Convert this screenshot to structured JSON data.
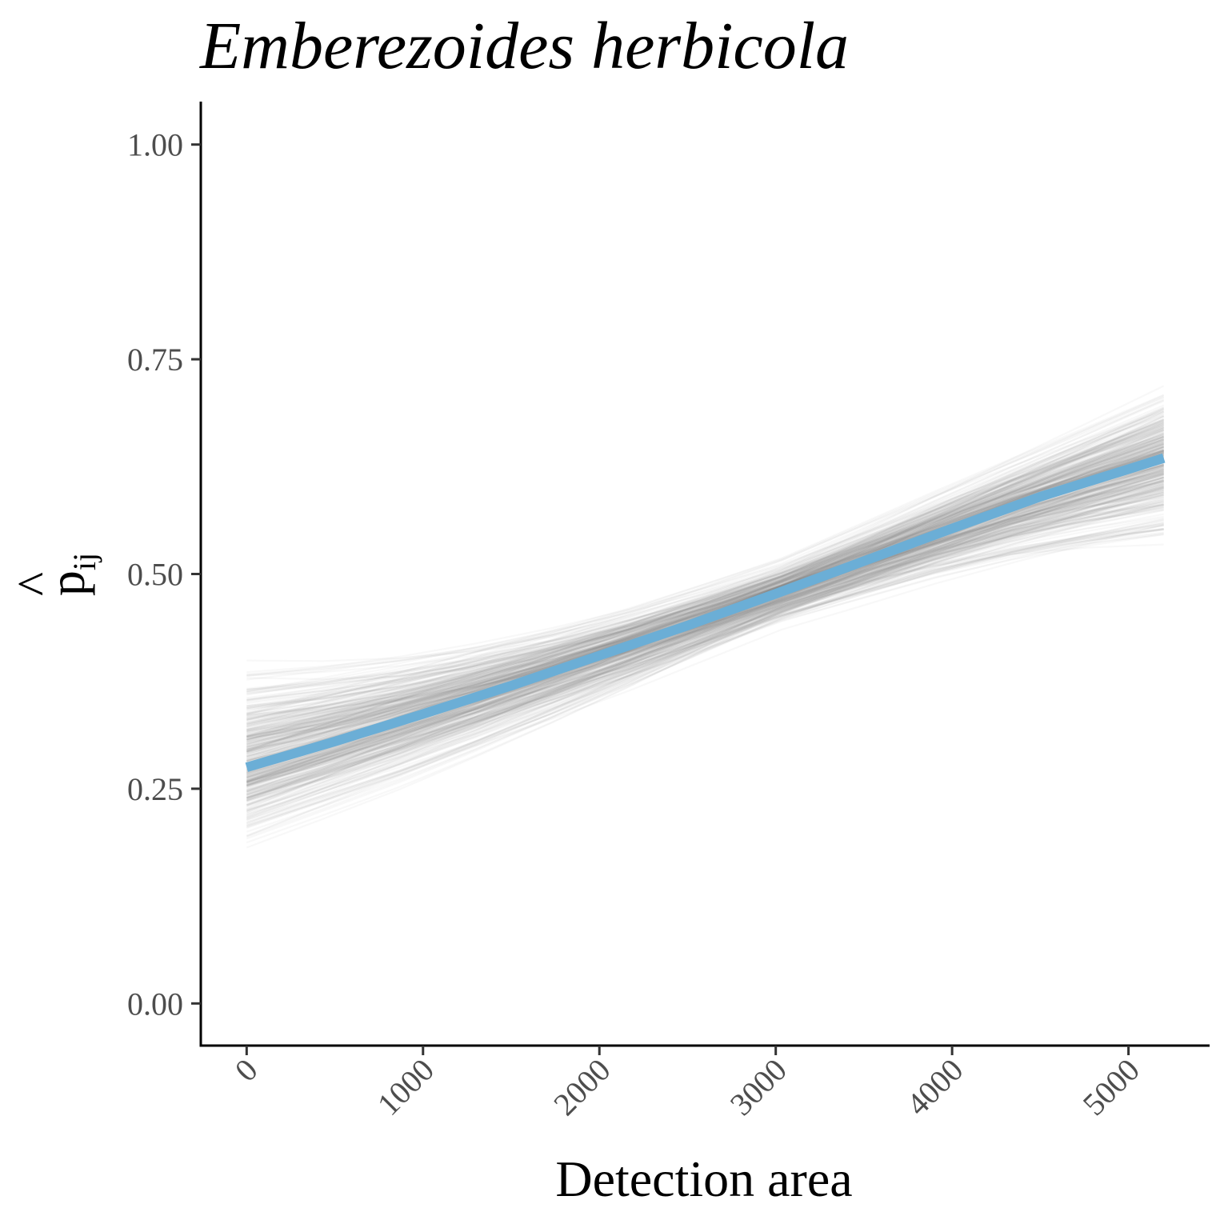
{
  "chart_data": {
    "type": "line",
    "title": "Emberezoides herbicola",
    "xlabel": "Detection area",
    "ylabel": "p̂ij",
    "ylabel_parts": {
      "base": "p",
      "hat": "^",
      "subscript": "ij"
    },
    "xlim": [
      -260,
      5460
    ],
    "ylim": [
      -0.05,
      1.05
    ],
    "x_ticks": [
      0,
      1000,
      2000,
      3000,
      4000,
      5000
    ],
    "x_tick_labels": [
      "0",
      "1000",
      "2000",
      "3000",
      "4000",
      "5000"
    ],
    "y_ticks": [
      0,
      0.25,
      0.5,
      0.75,
      1.0
    ],
    "y_tick_labels": [
      "0.00",
      "0.25",
      "0.50",
      "0.75",
      "1.00"
    ],
    "grid": false,
    "series": [
      {
        "role": "posterior mean",
        "color": "#6baed6",
        "x": [
          0,
          500,
          1000,
          1500,
          2000,
          2500,
          3000,
          3500,
          4000,
          4500,
          5200
        ],
        "y": [
          0.275,
          0.305,
          0.337,
          0.37,
          0.405,
          0.44,
          0.477,
          0.515,
          0.553,
          0.59,
          0.635
        ]
      }
    ],
    "posterior_band": {
      "role": "posterior draws",
      "color": "#808080",
      "x": [
        0,
        1000,
        2000,
        3000,
        4000,
        5200
      ],
      "lower": [
        0.13,
        0.19,
        0.27,
        0.38,
        0.43,
        0.46
      ],
      "upper": [
        0.48,
        0.49,
        0.51,
        0.56,
        0.66,
        0.77
      ]
    }
  }
}
